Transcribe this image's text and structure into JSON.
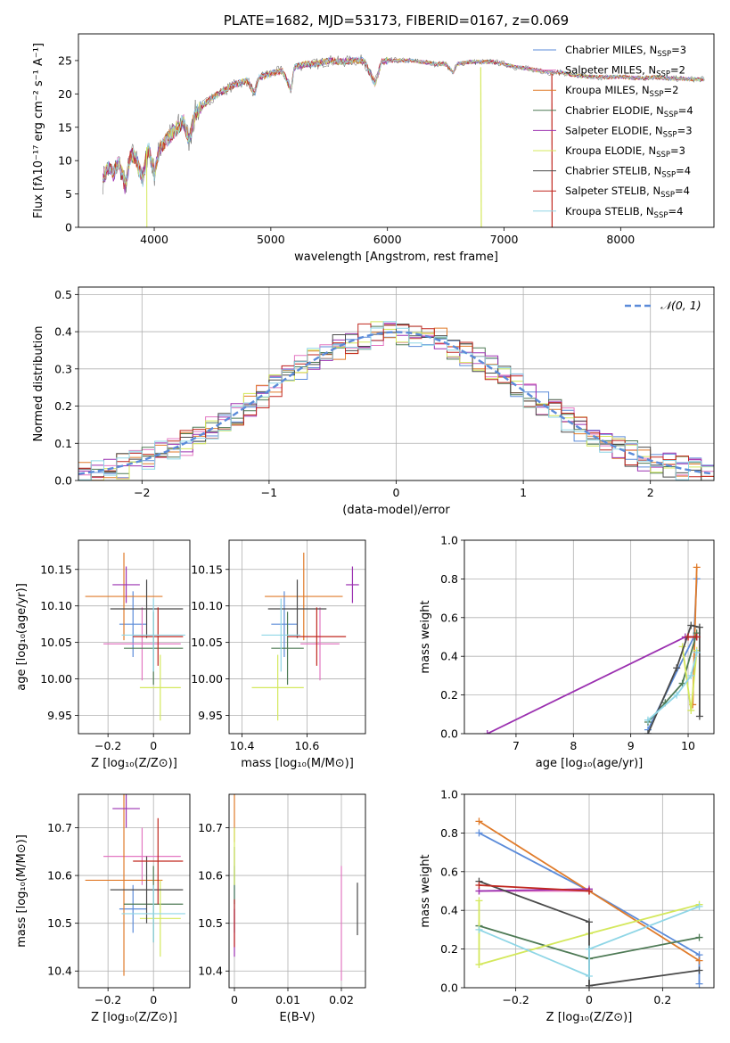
{
  "colors": {
    "Chabrier MILES": "#5b8bd9",
    "Salpeter MILES": "#e377c2",
    "Kroupa MILES": "#e07b2a",
    "Chabrier ELODIE": "#4e7a55",
    "Salpeter ELODIE": "#9b30b0",
    "Kroupa ELODIE": "#d4e85c",
    "Chabrier STELIB": "#4a4a4a",
    "Salpeter STELIB": "#c0271f",
    "Kroupa STELIB": "#8fd6e6",
    "normal": "#5b8bd9"
  },
  "chart_data": [
    {
      "type": "line",
      "title": "PLATE=1682, MJD=53173, FIBERID=0167, z=0.069",
      "xlabel": "wavelength [Angstrom, rest frame]",
      "ylabel": "Flux [fλ10⁻¹⁷ erg cm⁻² s⁻¹ A⁻¹]",
      "xlim": [
        3350,
        8800
      ],
      "ylim": [
        0,
        29
      ],
      "xticks": [
        4000,
        5000,
        6000,
        7000,
        8000
      ],
      "yticks": [
        0,
        5,
        10,
        15,
        20,
        25
      ],
      "grid": false,
      "legend_position": "top-right",
      "spectrum": {
        "x": [
          3560,
          3600,
          3650,
          3700,
          3750,
          3800,
          3850,
          3900,
          3950,
          4000,
          4050,
          4100,
          4150,
          4200,
          4250,
          4300,
          4350,
          4400,
          4500,
          4600,
          4700,
          4800,
          4861,
          4900,
          5000,
          5100,
          5175,
          5200,
          5300,
          5400,
          5500,
          5600,
          5700,
          5800,
          5893,
          5950,
          6000,
          6100,
          6200,
          6300,
          6400,
          6500,
          6563,
          6600,
          6700,
          6800,
          6900,
          7000,
          7100,
          7200,
          7300,
          7400,
          7500,
          7600,
          7700,
          7800,
          7900,
          8000,
          8100,
          8200,
          8300,
          8400,
          8500,
          8600,
          8700
        ],
        "y": [
          7,
          9,
          8,
          10,
          6,
          11,
          10,
          7,
          12,
          8,
          12,
          13,
          14,
          15,
          16,
          13,
          17,
          18,
          19.5,
          20.5,
          21.5,
          22,
          20,
          22.5,
          23,
          23.5,
          20.5,
          24,
          24.5,
          24.5,
          25,
          24.8,
          25,
          25,
          21.5,
          24.8,
          25,
          25,
          25,
          24.8,
          24.5,
          24.5,
          23.2,
          24.5,
          24.8,
          24.8,
          24.8,
          24.5,
          24,
          23.8,
          23.5,
          23.2,
          23.2,
          22.8,
          22.6,
          22.5,
          22.5,
          22.6,
          22.4,
          22.4,
          22.5,
          22.3,
          22.3,
          22.2,
          22.2
        ]
      },
      "series": [
        {
          "name": "Chabrier MILES, N_SSP=3",
          "name_main": "Chabrier MILES, N",
          "name_sub": "SSP",
          "name_tail": "=3"
        },
        {
          "name": "Salpeter MILES, N_SSP=2",
          "name_main": "Salpeter MILES, N",
          "name_sub": "SSP",
          "name_tail": "=2"
        },
        {
          "name": "Kroupa MILES, N_SSP=2",
          "name_main": "Kroupa MILES, N",
          "name_sub": "SSP",
          "name_tail": "=2"
        },
        {
          "name": "Chabrier ELODIE, N_SSP=4",
          "name_main": "Chabrier ELODIE, N",
          "name_sub": "SSP",
          "name_tail": "=4"
        },
        {
          "name": "Salpeter ELODIE, N_SSP=3",
          "name_main": "Salpeter ELODIE, N",
          "name_sub": "SSP",
          "name_tail": "=3"
        },
        {
          "name": "Kroupa ELODIE, N_SSP=3",
          "name_main": "Kroupa ELODIE, N",
          "name_sub": "SSP",
          "name_tail": "=3"
        },
        {
          "name": "Chabrier STELIB, N_SSP=4",
          "name_main": "Chabrier STELIB, N",
          "name_sub": "SSP",
          "name_tail": "=4"
        },
        {
          "name": "Salpeter STELIB, N_SSP=4",
          "name_main": "Salpeter STELIB, N",
          "name_sub": "SSP",
          "name_tail": "=4"
        },
        {
          "name": "Kroupa STELIB, N_SSP=4",
          "name_main": "Kroupa STELIB, N",
          "name_sub": "SSP",
          "name_tail": "=4"
        }
      ]
    },
    {
      "type": "line",
      "xlabel": "(data-model)/error",
      "ylabel": "Normed distribution",
      "xlim": [
        -2.5,
        2.5
      ],
      "ylim": [
        0,
        0.52
      ],
      "xticks": [
        -2,
        -1,
        0,
        1,
        2
      ],
      "yticks": [
        0.0,
        0.1,
        0.2,
        0.3,
        0.4,
        0.5
      ],
      "grid": true,
      "legend_position": "top-right",
      "reference_curve": {
        "name": "𝒩(0, 1)",
        "mean": 0,
        "sigma": 1
      },
      "histogram_bin_width": 0.1
    },
    {
      "type": "scatter",
      "xlabel": "Z [log₁₀(Z/Z⊙)]",
      "ylabel": "age  [log₁₀(age/yr)]",
      "xlim": [
        -0.33,
        0.16
      ],
      "ylim": [
        9.925,
        10.19
      ],
      "xticks": [
        -0.2,
        0.0
      ],
      "yticks": [
        9.95,
        10.0,
        10.05,
        10.1,
        10.15
      ],
      "grid": true,
      "points": [
        {
          "x": -0.09,
          "xerr": 0.06,
          "y": 10.075,
          "yerr": 0.045
        },
        {
          "x": -0.05,
          "xerr": 0.17,
          "y": 10.048,
          "yerr": 0.05
        },
        {
          "x": -0.13,
          "xerr": 0.17,
          "y": 10.113,
          "yerr": 0.06
        },
        {
          "x": 0.0,
          "xerr": 0.13,
          "y": 10.042,
          "yerr": 0.05
        },
        {
          "x": -0.12,
          "xerr": 0.06,
          "y": 10.129,
          "yerr": 0.025
        },
        {
          "x": 0.03,
          "xerr": 0.09,
          "y": 9.988,
          "yerr": 0.045
        },
        {
          "x": -0.03,
          "xerr": 0.16,
          "y": 10.096,
          "yerr": 0.04
        },
        {
          "x": 0.02,
          "xerr": 0.11,
          "y": 10.058,
          "yerr": 0.04
        },
        {
          "x": 0.0,
          "xerr": 0.14,
          "y": 10.06,
          "yerr": 0.05
        }
      ]
    },
    {
      "type": "scatter",
      "xlabel": "mass [log₁₀(M/M⊙)]",
      "xlim": [
        10.36,
        10.78
      ],
      "ylim": [
        9.925,
        10.19
      ],
      "xticks": [
        10.4,
        10.6
      ],
      "yticks": [
        9.95,
        10.0,
        10.05,
        10.1,
        10.15
      ],
      "grid": true,
      "points": [
        {
          "x": 10.53,
          "xerr": 0.04,
          "y": 10.075,
          "yerr": 0.045
        },
        {
          "x": 10.64,
          "xerr": 0.06,
          "y": 10.048,
          "yerr": 0.05
        },
        {
          "x": 10.59,
          "xerr": 0.12,
          "y": 10.113,
          "yerr": 0.06
        },
        {
          "x": 10.54,
          "xerr": 0.05,
          "y": 10.042,
          "yerr": 0.05
        },
        {
          "x": 10.74,
          "xerr": 0.02,
          "y": 10.129,
          "yerr": 0.025
        },
        {
          "x": 10.51,
          "xerr": 0.08,
          "y": 9.988,
          "yerr": 0.045
        },
        {
          "x": 10.57,
          "xerr": 0.09,
          "y": 10.096,
          "yerr": 0.04
        },
        {
          "x": 10.63,
          "xerr": 0.09,
          "y": 10.058,
          "yerr": 0.04
        },
        {
          "x": 10.52,
          "xerr": 0.06,
          "y": 10.06,
          "yerr": 0.05
        }
      ]
    },
    {
      "type": "line",
      "xlabel": "age  [log₁₀(age/yr)]",
      "ylabel": "mass weight",
      "xlim": [
        6.1,
        10.45
      ],
      "ylim": [
        0,
        1.0
      ],
      "xticks": [
        7,
        8,
        9,
        10
      ],
      "yticks": [
        0.0,
        0.2,
        0.4,
        0.6,
        0.8,
        1.0
      ],
      "grid": true,
      "series": [
        {
          "name": "Chabrier MILES",
          "x": [
            9.3,
            10.1,
            10.15
          ],
          "y": [
            0.02,
            0.5,
            0.8
          ]
        },
        {
          "name": "Salpeter MILES",
          "x": [
            10.0,
            10.15
          ],
          "y": [
            0.5,
            0.5
          ]
        },
        {
          "name": "Kroupa MILES",
          "x": [
            10.08,
            10.15
          ],
          "y": [
            0.15,
            0.86
          ]
        },
        {
          "name": "Chabrier ELODIE",
          "x": [
            9.3,
            9.6,
            9.9,
            10.15
          ],
          "y": [
            0.06,
            0.16,
            0.26,
            0.52
          ]
        },
        {
          "name": "Salpeter ELODIE",
          "x": [
            6.5,
            9.95,
            10.15
          ],
          "y": [
            0.0,
            0.5,
            0.5
          ]
        },
        {
          "name": "Kroupa ELODIE",
          "x": [
            9.9,
            10.05,
            10.15
          ],
          "y": [
            0.45,
            0.12,
            0.43
          ]
        },
        {
          "name": "Chabrier STELIB",
          "x": [
            9.3,
            9.8,
            10.05,
            10.2,
            10.2
          ],
          "y": [
            0.0,
            0.34,
            0.56,
            0.55,
            0.09
          ]
        },
        {
          "name": "Salpeter STELIB",
          "x": [
            10.0,
            10.15
          ],
          "y": [
            0.5,
            0.5
          ]
        },
        {
          "name": "Kroupa STELIB",
          "x": [
            9.3,
            9.8,
            10.05,
            10.15
          ],
          "y": [
            0.07,
            0.2,
            0.3,
            0.42
          ]
        }
      ]
    },
    {
      "type": "scatter",
      "xlabel": "Z [log₁₀(Z/Z⊙)]",
      "ylabel": "mass [log₁₀(M/M⊙)]",
      "xlim": [
        -0.33,
        0.16
      ],
      "ylim": [
        10.365,
        10.77
      ],
      "xticks": [
        -0.2,
        0.0
      ],
      "yticks": [
        10.4,
        10.5,
        10.6,
        10.7
      ],
      "grid": true,
      "points": [
        {
          "x": -0.09,
          "xerr": 0.06,
          "y": 10.53,
          "yerr": 0.05
        },
        {
          "x": -0.05,
          "xerr": 0.17,
          "y": 10.64,
          "yerr": 0.06
        },
        {
          "x": -0.13,
          "xerr": 0.17,
          "y": 10.59,
          "yerr": 0.2
        },
        {
          "x": 0.0,
          "xerr": 0.13,
          "y": 10.54,
          "yerr": 0.08
        },
        {
          "x": -0.12,
          "xerr": 0.06,
          "y": 10.74,
          "yerr": 0.04
        },
        {
          "x": 0.03,
          "xerr": 0.09,
          "y": 10.51,
          "yerr": 0.08
        },
        {
          "x": -0.03,
          "xerr": 0.16,
          "y": 10.57,
          "yerr": 0.07
        },
        {
          "x": 0.02,
          "xerr": 0.11,
          "y": 10.63,
          "yerr": 0.09
        },
        {
          "x": 0.0,
          "xerr": 0.14,
          "y": 10.52,
          "yerr": 0.06
        }
      ]
    },
    {
      "type": "scatter",
      "xlabel": "E(B-V)",
      "xlim": [
        -0.001,
        0.0245
      ],
      "ylim": [
        10.365,
        10.77
      ],
      "xticks": [
        0.0,
        0.01,
        0.02
      ],
      "yticks": [
        10.4,
        10.5,
        10.6,
        10.7
      ],
      "grid": true,
      "points": [
        {
          "x": 0.0,
          "y": 10.55,
          "yerr": 0.07
        },
        {
          "x": 0.02,
          "y": 10.5,
          "yerr": 0.12
        },
        {
          "x": 0.0,
          "y": 10.72,
          "yerr": 0.05
        },
        {
          "x": 0.0,
          "y": 10.6,
          "yerr": 0.06
        },
        {
          "x": 0.0,
          "y": 10.48,
          "yerr": 0.05
        },
        {
          "x": 0.0,
          "y": 10.64,
          "yerr": 0.06
        },
        {
          "x": 0.023,
          "y": 10.53,
          "yerr": 0.055
        },
        {
          "x": 0.0,
          "y": 10.5,
          "yerr": 0.05
        }
      ]
    },
    {
      "type": "line",
      "xlabel": "Z [log₁₀(Z/Z⊙)]",
      "ylabel": "mass weight",
      "xlim": [
        -0.34,
        0.34
      ],
      "ylim": [
        0,
        1.0
      ],
      "xticks": [
        -0.2,
        0.0,
        0.2
      ],
      "yticks": [
        0.0,
        0.2,
        0.4,
        0.6,
        0.8,
        1.0
      ],
      "grid": true,
      "series": [
        {
          "name": "Chabrier MILES",
          "x": [
            -0.3,
            0.0,
            0.3,
            0.3
          ],
          "y": [
            0.8,
            0.5,
            0.17,
            0.02
          ]
        },
        {
          "name": "Salpeter MILES",
          "x": [
            -0.3,
            0.0
          ],
          "y": [
            0.5,
            0.5
          ]
        },
        {
          "name": "Kroupa MILES",
          "x": [
            -0.3,
            0.0,
            0.3
          ],
          "y": [
            0.86,
            0.5,
            0.14
          ]
        },
        {
          "name": "Chabrier ELODIE",
          "x": [
            -0.3,
            0.0,
            0.3
          ],
          "y": [
            0.32,
            0.15,
            0.26
          ]
        },
        {
          "name": "Salpeter ELODIE",
          "x": [
            -0.3,
            0.0
          ],
          "y": [
            0.5,
            0.51
          ]
        },
        {
          "name": "Kroupa ELODIE",
          "x": [
            -0.3,
            -0.3,
            0.0,
            0.3
          ],
          "y": [
            0.45,
            0.12,
            0.28,
            0.43
          ]
        },
        {
          "name": "Chabrier STELIB",
          "x": [
            -0.3,
            0.0,
            0.0,
            0.3
          ],
          "y": [
            0.55,
            0.34,
            0.01,
            0.09
          ]
        },
        {
          "name": "Salpeter STELIB",
          "x": [
            -0.3,
            0.0
          ],
          "y": [
            0.53,
            0.5
          ]
        },
        {
          "name": "Kroupa STELIB",
          "x": [
            -0.3,
            0.0,
            0.0,
            0.3
          ],
          "y": [
            0.3,
            0.06,
            0.2,
            0.42
          ]
        }
      ]
    }
  ]
}
